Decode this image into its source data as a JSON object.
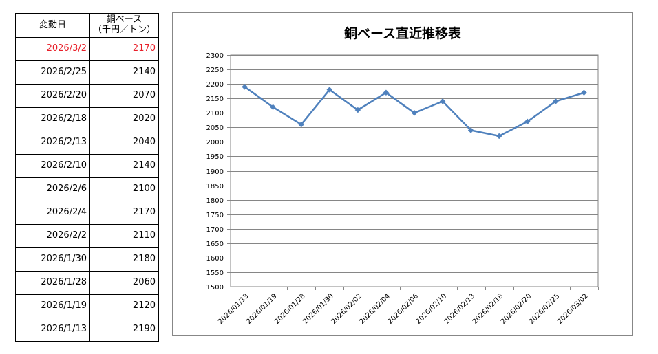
{
  "table": {
    "headers": {
      "date": "変動日",
      "price_line1": "銅ベース",
      "price_line2": "（千円／トン）"
    },
    "rows": [
      {
        "date": "2026/3/2",
        "price": "2170"
      },
      {
        "date": "2026/2/25",
        "price": "2140"
      },
      {
        "date": "2026/2/20",
        "price": "2070"
      },
      {
        "date": "2026/2/18",
        "price": "2020"
      },
      {
        "date": "2026/2/13",
        "price": "2040"
      },
      {
        "date": "2026/2/10",
        "price": "2140"
      },
      {
        "date": "2026/2/6",
        "price": "2100"
      },
      {
        "date": "2026/2/4",
        "price": "2170"
      },
      {
        "date": "2026/2/2",
        "price": "2110"
      },
      {
        "date": "2026/1/30",
        "price": "2180"
      },
      {
        "date": "2026/1/28",
        "price": "2060"
      },
      {
        "date": "2026/1/19",
        "price": "2120"
      },
      {
        "date": "2026/1/13",
        "price": "2190"
      }
    ],
    "highlight_color": "#e8202a"
  },
  "chart_data": {
    "type": "line",
    "title": "銅ベース直近推移表",
    "xlabel": "",
    "ylabel": "",
    "categories": [
      "2026/01/13",
      "2026/01/19",
      "2026/01/28",
      "2026/01/30",
      "2026/02/02",
      "2026/02/04",
      "2026/02/06",
      "2026/02/10",
      "2026/02/13",
      "2026/02/18",
      "2026/02/20",
      "2026/02/25",
      "2026/03/02"
    ],
    "series": [
      {
        "values": [
          2190,
          2120,
          2060,
          2180,
          2110,
          2170,
          2100,
          2140,
          2040,
          2020,
          2070,
          2140,
          2170
        ],
        "color": "#4f81bd",
        "marker": "diamond"
      }
    ],
    "ylim": [
      1500,
      2300
    ],
    "yticks": [
      1500,
      1550,
      1600,
      1650,
      1700,
      1750,
      1800,
      1850,
      1900,
      1950,
      2000,
      2050,
      2100,
      2150,
      2200,
      2250,
      2300
    ],
    "grid": true,
    "legend": "none",
    "xtick_rotation": -45
  }
}
